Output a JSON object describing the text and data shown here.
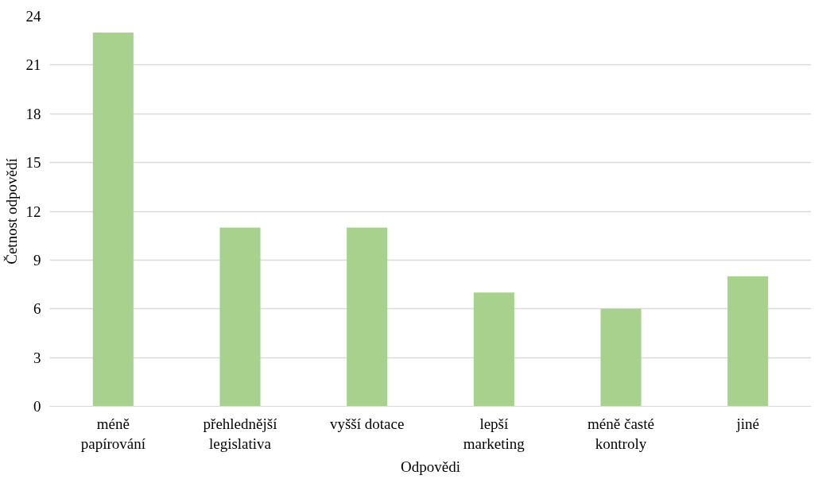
{
  "chart_data": {
    "type": "bar",
    "xlabel": "Odpovědi",
    "ylabel": "Četnost odpovědí",
    "categories": [
      "méně papírování",
      "přehlednější legislativa",
      "vyšší dotace",
      "lepší marketing",
      "méně časté kontroly",
      "jiné"
    ],
    "values": [
      23,
      11,
      11,
      7,
      6,
      8
    ],
    "color": "#a9d18e",
    "ylim": [
      0,
      24
    ],
    "yticks": [
      0,
      3,
      6,
      9,
      12,
      15,
      18,
      21,
      24
    ],
    "grid": "y"
  }
}
